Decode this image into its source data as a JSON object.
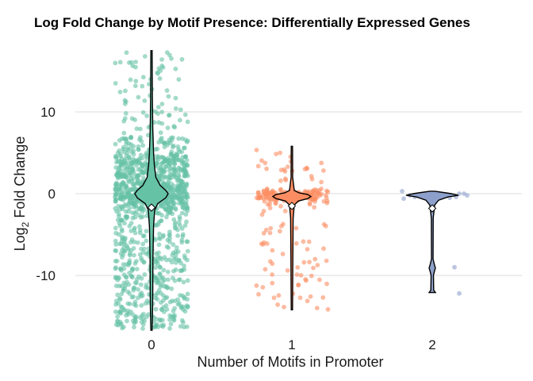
{
  "chart_data": {
    "type": "violin+jitter",
    "title": "Log Fold Change by Motif Presence: Differentially Expressed Genes",
    "xlabel": "Number of Motifs in Promoter",
    "ylabel_main": "Log",
    "ylabel_sub": "2",
    "ylabel_rest": " Fold Change",
    "categories": [
      "0",
      "1",
      "2"
    ],
    "y_ticks": [
      10,
      0,
      -10
    ],
    "ylim": [
      -16.8,
      17.8
    ],
    "grid": true,
    "colors": {
      "0": "#66c2a5",
      "1": "#fc8d62",
      "2": "#8da0cb"
    },
    "groups": [
      {
        "motifs": 0,
        "approx_n": 1400,
        "min": -16.7,
        "max": 17.5,
        "median": -0.3,
        "mean": -1.7
      },
      {
        "motifs": 1,
        "approx_n": 240,
        "min": -14.2,
        "max": 5.8,
        "median": -0.3,
        "mean": -1.5
      },
      {
        "motifs": 2,
        "approx_n": 12,
        "min": -12.1,
        "max": 0.3,
        "median": -0.2,
        "mean": -1.8
      }
    ]
  }
}
